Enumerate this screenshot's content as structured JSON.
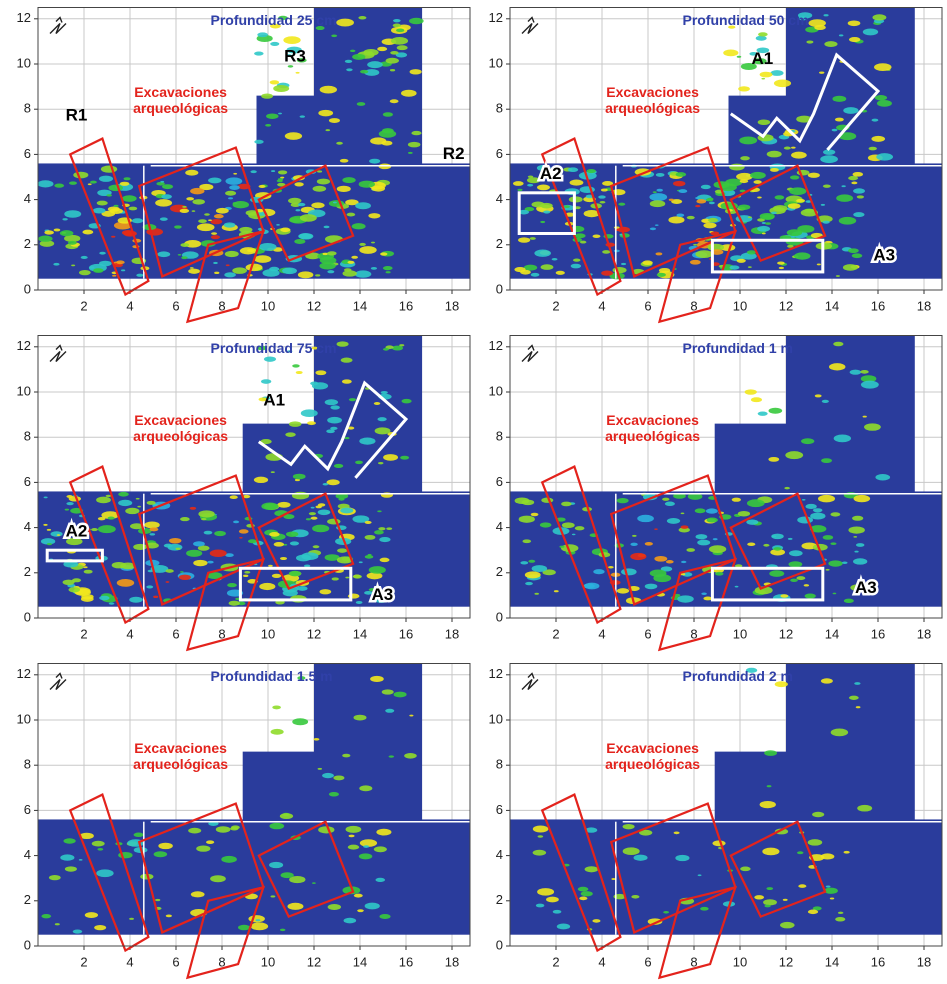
{
  "chart_data": [
    {
      "type": "map",
      "title": "Profundidad 25 cm",
      "label": [
        "Excavaciones",
        "arqueológicas"
      ],
      "annotations": [
        "R1",
        "R3",
        "R2"
      ],
      "xlim": [
        0,
        19
      ],
      "ylim": [
        0,
        12.5
      ],
      "xticks": [
        2,
        4,
        6,
        8,
        10,
        12,
        14,
        16,
        18
      ],
      "yticks": [
        0,
        2,
        4,
        6,
        8,
        10,
        12
      ]
    },
    {
      "type": "map",
      "title": "Profundidad 50 cm",
      "label": [
        "Excavaciones",
        "arqueológicas"
      ],
      "annotations": [
        "A1",
        "A2",
        "A3"
      ],
      "xlim": [
        0,
        19
      ],
      "ylim": [
        0,
        12.5
      ],
      "xticks": [
        2,
        4,
        6,
        8,
        10,
        12,
        14,
        16,
        18
      ],
      "yticks": [
        0,
        2,
        4,
        6,
        8,
        10,
        12
      ]
    },
    {
      "type": "map",
      "title": "Profundidad 75 cm",
      "label": [
        "Excavaciones",
        "arqueológicas"
      ],
      "annotations": [
        "A1",
        "A2",
        "A3"
      ],
      "xlim": [
        0,
        19
      ],
      "ylim": [
        0,
        12.5
      ],
      "xticks": [
        2,
        4,
        6,
        8,
        10,
        12,
        14,
        16,
        18
      ],
      "yticks": [
        0,
        2,
        4,
        6,
        8,
        10,
        12
      ]
    },
    {
      "type": "map",
      "title": "Profundidad 1 m",
      "label": [
        "Excavaciones",
        "arqueológicas"
      ],
      "annotations": [
        "A3"
      ],
      "xlim": [
        0,
        19
      ],
      "ylim": [
        0,
        12.5
      ],
      "xticks": [
        2,
        4,
        6,
        8,
        10,
        12,
        14,
        16,
        18
      ],
      "yticks": [
        0,
        2,
        4,
        6,
        8,
        10,
        12
      ]
    },
    {
      "type": "map",
      "title": "Profundidad 1.5 m",
      "label": [
        "Excavaciones",
        "arqueológicas"
      ],
      "annotations": [],
      "xlim": [
        0,
        19
      ],
      "ylim": [
        0,
        12.5
      ],
      "xticks": [
        2,
        4,
        6,
        8,
        10,
        12,
        14,
        16,
        18
      ],
      "yticks": [
        0,
        2,
        4,
        6,
        8,
        10,
        12
      ]
    },
    {
      "type": "map",
      "title": "Profundidad 2 m",
      "label": [
        "Excavaciones",
        "arqueológicas"
      ],
      "annotations": [],
      "xlim": [
        0,
        19
      ],
      "ylim": [
        0,
        12.5
      ],
      "xticks": [
        2,
        4,
        6,
        8,
        10,
        12,
        14,
        16,
        18
      ],
      "yticks": [
        0,
        2,
        4,
        6,
        8,
        10,
        12
      ]
    }
  ]
}
